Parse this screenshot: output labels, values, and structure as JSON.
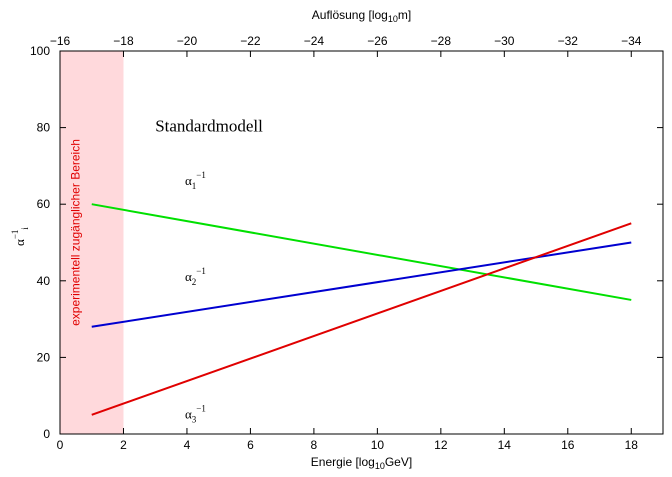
{
  "chart_data": {
    "type": "line",
    "xlabel": "Energie [log",
    "xlabel_sub": "10",
    "xlabel_suffix": "GeV]",
    "x2label": "Auflösung [log",
    "x2label_sub": "10",
    "x2label_suffix": "m]",
    "ylabel": "α",
    "ylabel_sup": "−1",
    "ylabel_sub": "i",
    "xlim": [
      0,
      19
    ],
    "ylim": [
      0,
      100
    ],
    "x_ticks": [
      0,
      2,
      4,
      6,
      8,
      10,
      12,
      14,
      16,
      18
    ],
    "y_ticks": [
      0,
      20,
      40,
      60,
      80,
      100
    ],
    "x2_ticks": [
      "−16",
      "−18",
      "−20",
      "−22",
      "−24",
      "−26",
      "−28",
      "−30",
      "−32",
      "−34"
    ],
    "grid": false,
    "shaded_region": {
      "x": [
        0,
        2
      ],
      "color": "#ffd9dc",
      "label": "experimentell zugänglicher Bereich",
      "label_color": "#e00000"
    },
    "series": [
      {
        "name": "α",
        "sub": "1",
        "sup": "−1",
        "color": "#00e000",
        "x": [
          1,
          18
        ],
        "y": [
          60,
          35
        ],
        "label_pos": [
          4.0,
          65
        ]
      },
      {
        "name": "α",
        "sub": "2",
        "sup": "−1",
        "color": "#0000d0",
        "x": [
          1,
          18
        ],
        "y": [
          28,
          50
        ],
        "label_pos": [
          4.0,
          40
        ]
      },
      {
        "name": "α",
        "sub": "3",
        "sup": "−1",
        "color": "#e00000",
        "x": [
          1,
          18
        ],
        "y": [
          5,
          55
        ],
        "label_pos": [
          4.0,
          4
        ]
      }
    ],
    "annotations": [
      {
        "text": "Standardmodell",
        "x": 3.0,
        "y": 79
      }
    ]
  }
}
